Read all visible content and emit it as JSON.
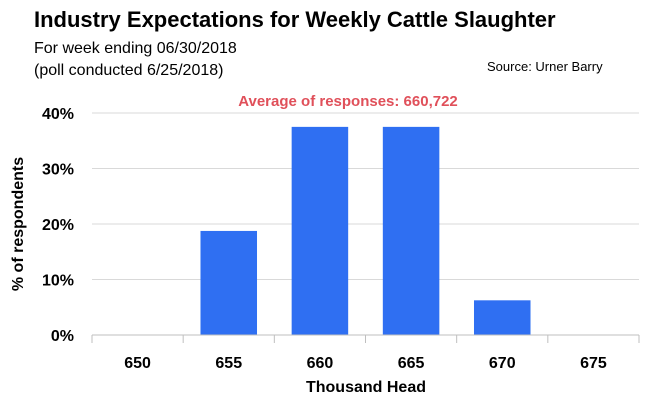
{
  "chart_data": {
    "type": "bar",
    "title": "Industry Expectations for Weekly Cattle Slaughter",
    "subtitle_lines": [
      "For week ending 06/30/2018",
      "(poll conducted 6/25/2018)"
    ],
    "source": "Source: Urner Barry",
    "annotation": "Average of responses: 660,722",
    "xlabel": "Thousand  Head",
    "ylabel": "% of respondents",
    "categories": [
      "650",
      "655",
      "660",
      "665",
      "670",
      "675"
    ],
    "values": [
      0,
      18.75,
      37.5,
      37.5,
      6.25,
      0
    ],
    "ylim": [
      0,
      40
    ],
    "yticks": [
      0,
      10,
      20,
      30,
      40
    ],
    "ytick_labels": [
      "0%",
      "10%",
      "20%",
      "30%",
      "40%"
    ],
    "grid": true,
    "legend": "none"
  },
  "colors": {
    "bar": "#2f6ff2",
    "annotation": "#e0505a",
    "grid": "#d9d9d9",
    "axis": "#bfbfbf"
  }
}
